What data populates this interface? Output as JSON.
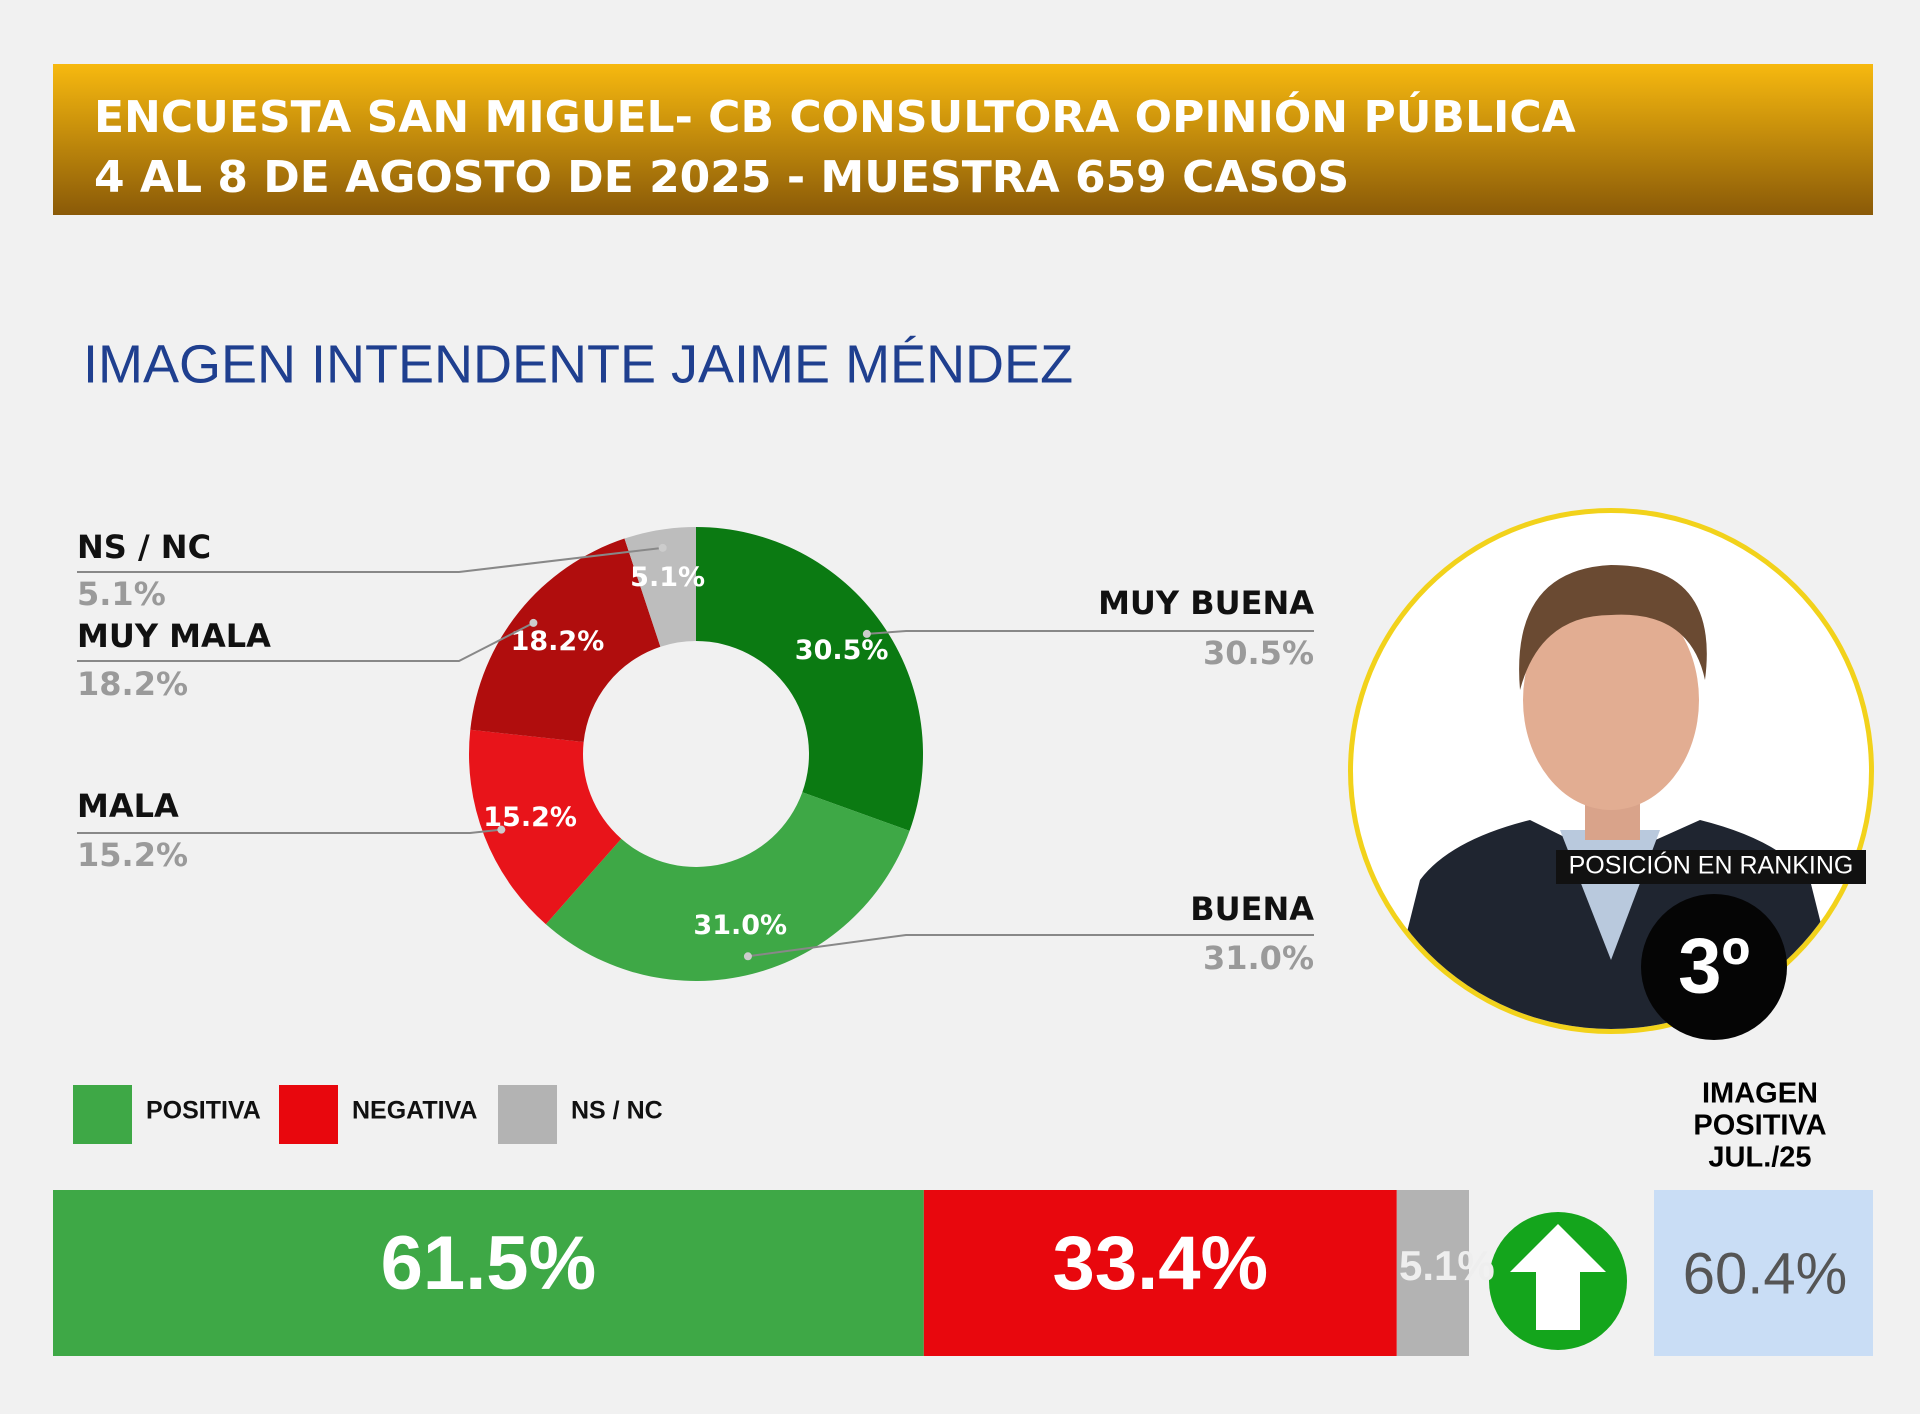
{
  "header": {
    "line1": "ENCUESTA SAN MIGUEL- CB CONSULTORA OPINIÓN PÚBLICA",
    "line2": "4 AL 8 DE AGOSTO DE 2025 - MUESTRA 659 CASOS"
  },
  "chart_data": [
    {
      "type": "donut",
      "title": "IMAGEN INTENDENTE  JAIME MÉNDEZ",
      "categories": [
        "MUY BUENA",
        "BUENA",
        "MALA",
        "MUY MALA",
        "NS / NC"
      ],
      "values": [
        30.5,
        31.0,
        15.2,
        18.2,
        5.1
      ],
      "value_labels": [
        "30.5%",
        "31.0%",
        "15.2%",
        "18.2%",
        "5.1%"
      ],
      "colors": [
        "#0b7a12",
        "#3ea846",
        "#e8141a",
        "#b00d0d",
        "#bdbdbd"
      ]
    },
    {
      "type": "stacked_bar",
      "series": [
        {
          "name": "POSITIVA",
          "color": "#3ea846",
          "values": [
            61.5
          ],
          "value_labels": [
            "61.5%"
          ]
        },
        {
          "name": "NEGATIVA",
          "color": "#e8070d",
          "values": [
            33.4
          ],
          "value_labels": [
            "33.4%"
          ]
        },
        {
          "name": "NS / NC",
          "color": "#b3b3b3",
          "values": [
            5.1
          ],
          "value_labels": [
            "5.1%"
          ]
        }
      ]
    }
  ],
  "ranking": {
    "label": "POSICIÓN EN RANKING",
    "position": "3º"
  },
  "previous": {
    "lines": [
      "IMAGEN",
      "POSITIVA",
      "JUL./25"
    ],
    "value": "60.4%"
  }
}
